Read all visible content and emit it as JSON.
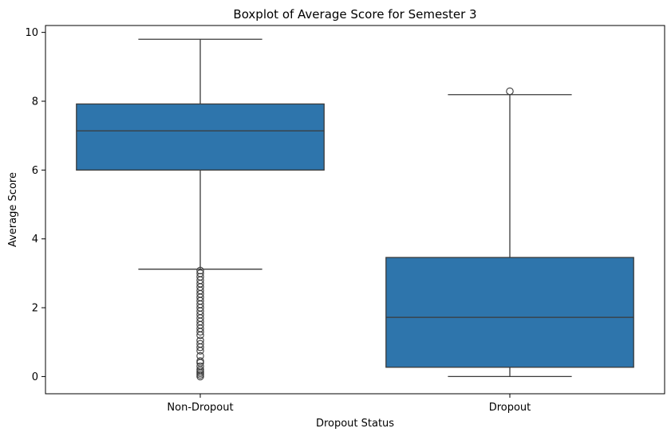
{
  "chart_data": {
    "type": "boxplot",
    "title": "Boxplot of Average Score for Semester 3",
    "xlabel": "Dropout Status",
    "ylabel": "Average Score",
    "ylim": [
      -0.5,
      10.2
    ],
    "yticks": [
      0,
      2,
      4,
      6,
      8,
      10
    ],
    "grid": false,
    "box_color": "#2e75ac",
    "line_color": "#3a3a3a",
    "categories": [
      "Non-Dropout",
      "Dropout"
    ],
    "boxes": [
      {
        "category": "Non-Dropout",
        "whisker_low": 3.12,
        "q1": 6.0,
        "median": 7.14,
        "q3": 7.92,
        "whisker_high": 9.8,
        "outliers": [
          0.0,
          0.05,
          0.1,
          0.15,
          0.2,
          0.3,
          0.4,
          0.45,
          0.6,
          0.75,
          0.85,
          0.95,
          1.05,
          1.2,
          1.3,
          1.4,
          1.5,
          1.6,
          1.7,
          1.8,
          1.9,
          2.0,
          2.1,
          2.2,
          2.3,
          2.4,
          2.5,
          2.6,
          2.7,
          2.8,
          2.9,
          3.0,
          3.08
        ]
      },
      {
        "category": "Dropout",
        "whisker_low": 0.0,
        "q1": 0.27,
        "median": 1.72,
        "q3": 3.46,
        "whisker_high": 8.19,
        "outliers": [
          8.29
        ]
      }
    ]
  }
}
